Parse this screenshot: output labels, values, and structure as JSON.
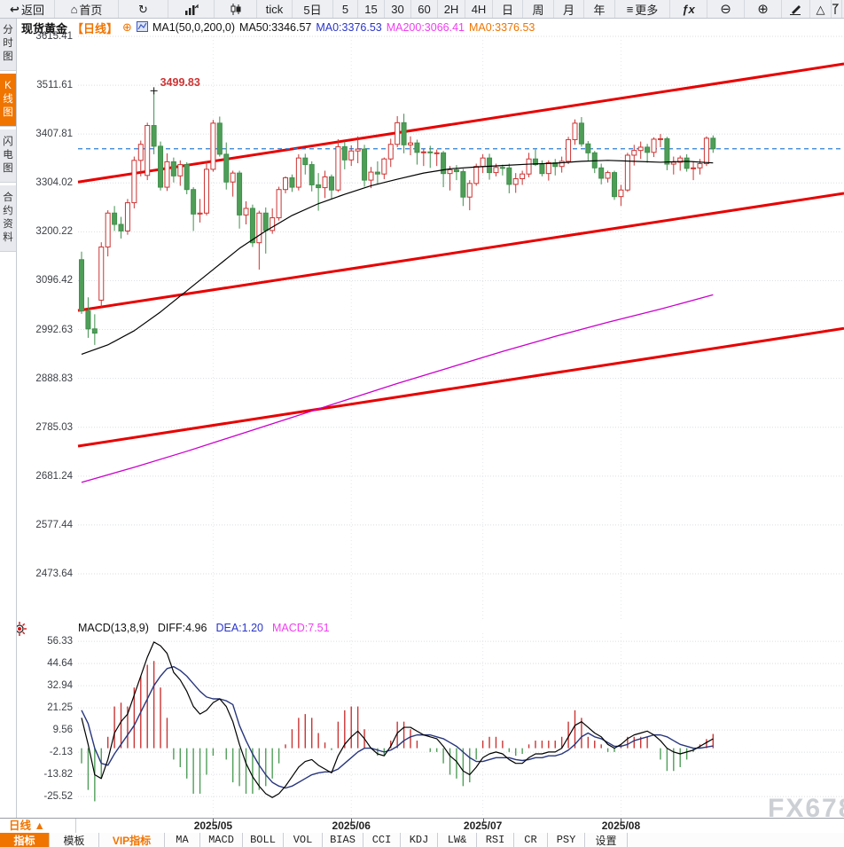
{
  "topbar": {
    "items": [
      {
        "label": "返回",
        "icon": "back-arrow"
      },
      {
        "label": "首页",
        "icon": "home"
      },
      {
        "icon": "refresh"
      },
      {
        "icon": "bar-chart"
      },
      {
        "icon": "candlestick"
      },
      {
        "label": "tick"
      },
      {
        "label": "5日"
      },
      {
        "label": "5"
      },
      {
        "label": "15"
      },
      {
        "label": "30"
      },
      {
        "label": "60"
      },
      {
        "label": "2H"
      },
      {
        "label": "4H"
      },
      {
        "label": "日"
      },
      {
        "label": "周"
      },
      {
        "label": "月"
      },
      {
        "label": "年"
      },
      {
        "label": "更多",
        "icon": "menu"
      },
      {
        "icon": "fx"
      },
      {
        "icon": "zoom-out"
      },
      {
        "icon": "zoom-in"
      },
      {
        "icon": "pencil"
      },
      {
        "icon": "triangle"
      },
      {
        "icon": "flag"
      }
    ]
  },
  "sidebar": {
    "tabs": [
      {
        "label": "分时图",
        "active": false
      },
      {
        "label": "K线图",
        "active": true
      },
      {
        "label": "闪电图",
        "active": false
      },
      {
        "label": "合约资料",
        "active": false
      }
    ]
  },
  "chart_header": {
    "symbol": "现货黄金",
    "period_tag": "【日线】",
    "add_icon": "⊕",
    "ma_params": "MA1(50,0,200,0)",
    "ma50_text": "MA50:3346.57",
    "ma0_blue_text": "MA0:3376.53",
    "ma200_text": "MA200:3066.41",
    "ma0_orange_text": "MA0:3376.53"
  },
  "macd_header": {
    "title": "MACD(13,8,9)",
    "diff_text": "DIFF:4.96",
    "dea_text": "DEA:1.20",
    "macd_text": "MACD:7.51"
  },
  "xaxis": {
    "period_button": "日线 ▲"
  },
  "bottom_toolbar": {
    "items": [
      {
        "label": "指标",
        "state": "active",
        "cjk": true
      },
      {
        "label": "模板",
        "cjk": true
      },
      {
        "label": "VIP指标",
        "state": "vip",
        "cjk": true
      },
      {
        "label": "MA"
      },
      {
        "label": "MACD"
      },
      {
        "label": "BOLL"
      },
      {
        "label": "VOL"
      },
      {
        "label": "BIAS"
      },
      {
        "label": "CCI"
      },
      {
        "label": "KDJ"
      },
      {
        "label": "LW&"
      },
      {
        "label": "RSI"
      },
      {
        "label": "CR"
      },
      {
        "label": "PSY"
      },
      {
        "label": "设置",
        "cjk": true
      }
    ]
  },
  "watermark": "FX678",
  "colors": {
    "accent_orange": "#f07400",
    "up_red": "#cc3333",
    "down_green": "#4f9e58",
    "trend_red": "#e80000",
    "ma50_black": "#000000",
    "ma200_magenta": "#cc00cc",
    "current_price_blue": "#2b7fd4",
    "dea_navy": "#28367d",
    "grid_gray": "#dcdee2"
  },
  "chart_data": {
    "type": "candlestick",
    "title": "现货黄金 日线 (Spot Gold Daily)",
    "price_axis_ticks": [
      3615.41,
      3511.61,
      3407.81,
      3304.02,
      3200.22,
      3096.42,
      2992.63,
      2888.83,
      2785.03,
      2681.24,
      2577.44,
      2473.64
    ],
    "current_price": 3376.53,
    "peak_annotation": {
      "index": 11,
      "price": 3499.83,
      "label": "3499.83"
    },
    "month_ticks": [
      {
        "label": "2025/05",
        "index": 20
      },
      {
        "label": "2025/06",
        "index": 41
      },
      {
        "label": "2025/07",
        "index": 61
      },
      {
        "label": "2025/08",
        "index": 82
      }
    ],
    "candles_ohlc": [
      [
        3141,
        3158,
        3026,
        3032
      ],
      [
        3032,
        3061,
        2975,
        2994
      ],
      [
        2994,
        3025,
        2960,
        2985
      ],
      [
        3055,
        3178,
        3040,
        3168
      ],
      [
        3168,
        3246,
        3148,
        3240
      ],
      [
        3240,
        3255,
        3202,
        3216
      ],
      [
        3216,
        3232,
        3186,
        3202
      ],
      [
        3202,
        3270,
        3194,
        3262
      ],
      [
        3262,
        3360,
        3250,
        3352
      ],
      [
        3352,
        3394,
        3318,
        3386
      ],
      [
        3320,
        3432,
        3310,
        3426
      ],
      [
        3426,
        3499.83,
        3365,
        3382
      ],
      [
        3382,
        3392,
        3288,
        3295
      ],
      [
        3295,
        3367,
        3287,
        3349
      ],
      [
        3349,
        3358,
        3305,
        3319
      ],
      [
        3319,
        3352,
        3298,
        3343
      ],
      [
        3343,
        3348,
        3280,
        3290
      ],
      [
        3290,
        3295,
        3202,
        3238
      ],
      [
        3238,
        3270,
        3220,
        3240
      ],
      [
        3240,
        3350,
        3235,
        3333
      ],
      [
        3333,
        3438,
        3328,
        3431
      ],
      [
        3431,
        3445,
        3360,
        3365
      ],
      [
        3365,
        3390,
        3290,
        3306
      ],
      [
        3306,
        3330,
        3275,
        3325
      ],
      [
        3325,
        3330,
        3207,
        3236
      ],
      [
        3236,
        3265,
        3216,
        3250
      ],
      [
        3250,
        3258,
        3168,
        3177
      ],
      [
        3177,
        3245,
        3120,
        3240
      ],
      [
        3240,
        3252,
        3154,
        3203
      ],
      [
        3203,
        3250,
        3196,
        3230
      ],
      [
        3230,
        3296,
        3224,
        3290
      ],
      [
        3290,
        3318,
        3282,
        3315
      ],
      [
        3315,
        3322,
        3285,
        3295
      ],
      [
        3295,
        3365,
        3288,
        3357
      ],
      [
        3357,
        3366,
        3322,
        3343
      ],
      [
        3343,
        3350,
        3286,
        3300
      ],
      [
        3300,
        3325,
        3245,
        3294
      ],
      [
        3294,
        3330,
        3272,
        3317
      ],
      [
        3317,
        3322,
        3270,
        3289
      ],
      [
        3289,
        3397,
        3285,
        3381
      ],
      [
        3381,
        3392,
        3333,
        3353
      ],
      [
        3353,
        3384,
        3340,
        3372
      ],
      [
        3372,
        3403,
        3346,
        3376
      ],
      [
        3376,
        3385,
        3296,
        3310
      ],
      [
        3310,
        3338,
        3293,
        3327
      ],
      [
        3327,
        3350,
        3301,
        3323
      ],
      [
        3323,
        3358,
        3312,
        3355
      ],
      [
        3355,
        3398,
        3338,
        3386
      ],
      [
        3386,
        3446,
        3380,
        3432
      ],
      [
        3432,
        3451,
        3367,
        3385
      ],
      [
        3385,
        3403,
        3363,
        3389
      ],
      [
        3389,
        3396,
        3343,
        3369
      ],
      [
        3369,
        3377,
        3340,
        3370
      ],
      [
        3370,
        3383,
        3336,
        3368
      ],
      [
        3368,
        3375,
        3340,
        3368
      ],
      [
        3368,
        3372,
        3295,
        3324
      ],
      [
        3324,
        3340,
        3288,
        3332
      ],
      [
        3332,
        3342,
        3310,
        3328
      ],
      [
        3328,
        3334,
        3255,
        3274
      ],
      [
        3274,
        3310,
        3246,
        3303
      ],
      [
        3303,
        3345,
        3298,
        3339
      ],
      [
        3339,
        3365,
        3325,
        3357
      ],
      [
        3357,
        3366,
        3311,
        3326
      ],
      [
        3326,
        3345,
        3318,
        3337
      ],
      [
        3337,
        3343,
        3320,
        3336
      ],
      [
        3336,
        3345,
        3282,
        3301
      ],
      [
        3301,
        3325,
        3283,
        3313
      ],
      [
        3313,
        3330,
        3300,
        3323
      ],
      [
        3323,
        3368,
        3316,
        3355
      ],
      [
        3355,
        3375,
        3340,
        3343
      ],
      [
        3343,
        3352,
        3318,
        3324
      ],
      [
        3324,
        3352,
        3309,
        3347
      ],
      [
        3347,
        3355,
        3320,
        3339
      ],
      [
        3339,
        3360,
        3326,
        3350
      ],
      [
        3350,
        3402,
        3344,
        3396
      ],
      [
        3396,
        3439,
        3385,
        3431
      ],
      [
        3431,
        3444,
        3381,
        3387
      ],
      [
        3387,
        3393,
        3350,
        3368
      ],
      [
        3368,
        3372,
        3325,
        3336
      ],
      [
        3336,
        3345,
        3301,
        3314
      ],
      [
        3314,
        3330,
        3305,
        3326
      ],
      [
        3326,
        3330,
        3268,
        3275
      ],
      [
        3275,
        3300,
        3255,
        3289
      ],
      [
        3289,
        3368,
        3285,
        3363
      ],
      [
        3363,
        3385,
        3341,
        3373
      ],
      [
        3373,
        3392,
        3355,
        3380
      ],
      [
        3380,
        3387,
        3347,
        3369
      ],
      [
        3369,
        3401,
        3359,
        3397
      ],
      [
        3397,
        3408,
        3380,
        3398
      ],
      [
        3398,
        3402,
        3331,
        3344
      ],
      [
        3344,
        3360,
        3322,
        3348
      ],
      [
        3348,
        3362,
        3330,
        3357
      ],
      [
        3357,
        3365,
        3328,
        3335
      ],
      [
        3335,
        3350,
        3310,
        3336
      ],
      [
        3336,
        3355,
        3322,
        3345
      ],
      [
        3345,
        3403,
        3340,
        3399
      ],
      [
        3399,
        3405,
        3368,
        3376.53
      ]
    ],
    "ma50_points": [
      [
        0,
        2940
      ],
      [
        4,
        2960
      ],
      [
        8,
        2990
      ],
      [
        12,
        3030
      ],
      [
        16,
        3075
      ],
      [
        20,
        3120
      ],
      [
        24,
        3165
      ],
      [
        28,
        3202
      ],
      [
        32,
        3235
      ],
      [
        36,
        3260
      ],
      [
        40,
        3280
      ],
      [
        44,
        3298
      ],
      [
        48,
        3312
      ],
      [
        52,
        3325
      ],
      [
        56,
        3334
      ],
      [
        60,
        3338
      ],
      [
        64,
        3341
      ],
      [
        68,
        3344
      ],
      [
        72,
        3346
      ],
      [
        76,
        3350
      ],
      [
        80,
        3352
      ],
      [
        84,
        3350
      ],
      [
        88,
        3348
      ],
      [
        92,
        3350
      ],
      [
        96,
        3346.57
      ]
    ],
    "ma200_points": [
      [
        0,
        2668
      ],
      [
        8,
        2700
      ],
      [
        16,
        2734
      ],
      [
        24,
        2770
      ],
      [
        32,
        2806
      ],
      [
        40,
        2842
      ],
      [
        48,
        2878
      ],
      [
        56,
        2912
      ],
      [
        64,
        2946
      ],
      [
        72,
        2978
      ],
      [
        80,
        3008
      ],
      [
        88,
        3036
      ],
      [
        96,
        3066.41
      ]
    ],
    "trendlines": [
      {
        "price_left": 3306,
        "price_right": 3557
      },
      {
        "price_left": 3033,
        "price_right": 3282
      },
      {
        "price_left": 2745,
        "price_right": 2995
      }
    ],
    "macd": {
      "params": "(13,8,9)",
      "axis_ticks": [
        56.33,
        44.64,
        32.94,
        21.25,
        9.56,
        -2.13,
        -13.82,
        -25.52
      ],
      "final": {
        "diff": 4.96,
        "dea": 1.2,
        "macd": 7.51
      },
      "diff": [
        16,
        2,
        -14,
        -16,
        -6,
        8,
        14,
        18,
        28,
        38,
        48,
        56,
        54,
        50,
        40,
        36,
        30,
        22,
        18,
        20,
        24,
        26,
        22,
        14,
        2,
        -8,
        -15,
        -20,
        -24,
        -26,
        -24,
        -20,
        -15,
        -10,
        -7,
        -6,
        -9,
        -11,
        -13,
        -4,
        2,
        6,
        9,
        5,
        0,
        -3,
        -4,
        1,
        8,
        11,
        11,
        9,
        7,
        6,
        5,
        1,
        -4,
        -7,
        -12,
        -14,
        -10,
        -5,
        -3,
        -2,
        -3,
        -6,
        -8,
        -8,
        -5,
        -3,
        -3,
        -2,
        -2,
        0,
        6,
        12,
        14,
        11,
        8,
        6,
        2,
        0,
        2,
        5,
        7,
        8,
        9,
        7,
        4,
        0,
        -2,
        -3,
        -2,
        -1,
        1,
        3,
        4.96
      ],
      "dea": [
        20,
        13,
        0,
        -8,
        -9,
        -3,
        2,
        7,
        12,
        19,
        26,
        33,
        38,
        42,
        43,
        41,
        38,
        34,
        30,
        27,
        26,
        26,
        25,
        23,
        12,
        4,
        -3,
        -9,
        -14,
        -18,
        -20,
        -21,
        -20,
        -18,
        -16,
        -14,
        -13,
        -12.5,
        -12.5,
        -11,
        -8,
        -5,
        -2,
        0,
        0,
        -1,
        -2,
        -1,
        1,
        4,
        6,
        7,
        7,
        7,
        6,
        5,
        3,
        1,
        -2,
        -5,
        -7,
        -7,
        -6,
        -5,
        -5,
        -5,
        -6,
        -6.5,
        -6,
        -5,
        -5,
        -4,
        -4,
        -3,
        -1,
        2,
        6,
        8,
        6,
        5,
        3,
        1,
        1,
        2,
        4,
        5,
        6,
        7,
        7,
        6,
        4,
        2,
        1,
        0,
        0,
        0.6,
        1.2
      ],
      "histogram_rule": "2*(diff-dea)"
    }
  }
}
